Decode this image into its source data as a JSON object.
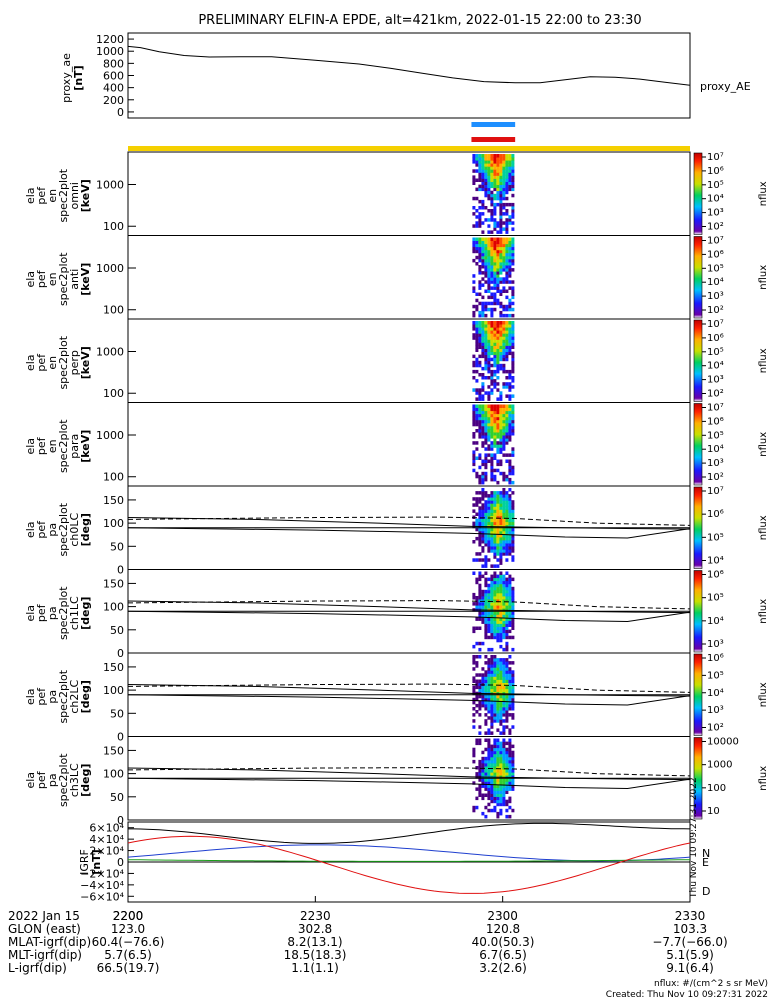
{
  "title": "PRELIMINARY ELFIN-A EPDE, alt=421km, 2022-01-15 22:00 to 23:30",
  "ae_panel": {
    "ylabel_1": "proxy_ae",
    "ylabel_2": "[nT]",
    "legend": "proxy_AE",
    "ticks": [
      "1200",
      "1000",
      "800",
      "600",
      "400",
      "200",
      "0"
    ],
    "tick_values": [
      1200,
      1000,
      800,
      600,
      400,
      200,
      0
    ],
    "ylim": [
      -100,
      1300
    ],
    "trace": [
      {
        "t": 0,
        "v": 1080
      },
      {
        "t": 2,
        "v": 1060
      },
      {
        "t": 5,
        "v": 990
      },
      {
        "t": 9,
        "v": 930
      },
      {
        "t": 13,
        "v": 905
      },
      {
        "t": 18,
        "v": 910
      },
      {
        "t": 23,
        "v": 910
      },
      {
        "t": 30,
        "v": 850
      },
      {
        "t": 37,
        "v": 790
      },
      {
        "t": 42,
        "v": 720
      },
      {
        "t": 47,
        "v": 640
      },
      {
        "t": 52,
        "v": 560
      },
      {
        "t": 57,
        "v": 500
      },
      {
        "t": 62,
        "v": 480
      },
      {
        "t": 66,
        "v": 480
      },
      {
        "t": 70,
        "v": 530
      },
      {
        "t": 74,
        "v": 580
      },
      {
        "t": 78,
        "v": 570
      },
      {
        "t": 82,
        "v": 540
      },
      {
        "t": 86,
        "v": 490
      },
      {
        "t": 90,
        "v": 440
      }
    ]
  },
  "spec_panels": [
    {
      "l1": "ela",
      "l2": "pef",
      "l3": "en",
      "l4": "spec2plot",
      "l5": "omni",
      "l6": "[keV]",
      "cb_ticks": [
        "10⁷",
        "10⁶",
        "10⁵",
        "10⁴",
        "10³",
        "10²"
      ],
      "cb_label": "nflux"
    },
    {
      "l1": "ela",
      "l2": "pef",
      "l3": "en",
      "l4": "spec2plot",
      "l5": "anti",
      "l6": "[keV]",
      "cb_ticks": [
        "10⁷",
        "10⁶",
        "10⁵",
        "10⁴",
        "10³",
        "10²"
      ],
      "cb_label": "nflux"
    },
    {
      "l1": "ela",
      "l2": "pef",
      "l3": "en",
      "l4": "spec2plot",
      "l5": "perp",
      "l6": "[keV]",
      "cb_ticks": [
        "10⁷",
        "10⁶",
        "10⁵",
        "10⁴",
        "10³",
        "10²"
      ],
      "cb_label": "nflux"
    },
    {
      "l1": "ela",
      "l2": "pef",
      "l3": "en",
      "l4": "spec2plot",
      "l5": "para",
      "l6": "[keV]",
      "cb_ticks": [
        "10⁷",
        "10⁶",
        "10⁵",
        "10⁴",
        "10³",
        "10²"
      ],
      "cb_label": "nflux"
    }
  ],
  "spec_ticks": [
    "1000",
    "100"
  ],
  "spec_tick_values": [
    1000,
    100
  ],
  "spec_ylim": [
    60,
    6000
  ],
  "pa_panels": [
    {
      "l1": "ela",
      "l2": "pef",
      "l3": "pa",
      "l4": "spec2plot",
      "l5": "ch0LC",
      "l6": "[deg]",
      "cb_ticks": [
        "10⁷",
        "10⁶",
        "10⁵",
        "10⁴"
      ],
      "cb_label": "nflux"
    },
    {
      "l1": "ela",
      "l2": "pef",
      "l3": "pa",
      "l4": "spec2plot",
      "l5": "ch1LC",
      "l6": "[deg]",
      "cb_ticks": [
        "10⁶",
        "10⁵",
        "10⁴",
        "10³"
      ],
      "cb_label": "nflux"
    },
    {
      "l1": "ela",
      "l2": "pef",
      "l3": "pa",
      "l4": "spec2plot",
      "l5": "ch2LC",
      "l6": "[deg]",
      "cb_ticks": [
        "10⁶",
        "10⁵",
        "10⁴",
        "10³",
        "10²"
      ],
      "cb_label": "nflux"
    },
    {
      "l1": "ela",
      "l2": "pef",
      "l3": "pa",
      "l4": "spec2plot",
      "l5": "ch3LC",
      "l6": "[deg]",
      "cb_ticks": [
        "10000",
        "1000",
        "100",
        "10"
      ],
      "cb_label": "nflux"
    }
  ],
  "pa_ticks": [
    "150",
    "100",
    "50",
    "0"
  ],
  "pa_tick_values": [
    150,
    100,
    50,
    0
  ],
  "pa_ylim": [
    0,
    180
  ],
  "igrf_panel": {
    "ylabel_1": "IGRF",
    "ylabel_2": "[nT]",
    "ticks": [
      "6×10⁴",
      "4×10⁴",
      "2×10⁴",
      "0",
      "−2×10⁴",
      "−4×10⁴",
      "−6×10⁴"
    ],
    "tick_values": [
      60000,
      40000,
      20000,
      0,
      -20000,
      -40000,
      -60000
    ],
    "ylim": [
      -70000,
      70000
    ],
    "legend": [
      "N",
      "E",
      "D"
    ],
    "colors": {
      "N": "#1f3fcf",
      "E": "#1a9e1a",
      "D": "#e01010",
      "F": "#000000"
    },
    "side_text": "Thu Nov 10 09:27:31 2022"
  },
  "x_axis": {
    "ticks": [
      "2200",
      "2230",
      "2300",
      "2330"
    ],
    "tick_minutes": [
      0,
      30,
      60,
      90
    ],
    "xlim": [
      0,
      90
    ]
  },
  "ephem": {
    "rows": [
      {
        "label": "2022 Jan 15",
        "vals": [
          "2200",
          "",
          "",
          ""
        ]
      },
      {
        "label": "GLON (east)",
        "vals": [
          "123.0",
          "302.8",
          "120.8",
          "103.3"
        ]
      },
      {
        "label": "MLAT-igrf(dip)",
        "vals": [
          "60.4(−76.6)",
          "8.2(13.1)",
          "40.0(50.3)",
          "−7.7(−66.0)"
        ]
      },
      {
        "label": "MLT-igrf(dip)",
        "vals": [
          "5.7(6.5)",
          "18.5(18.3)",
          "6.7(6.5)",
          "5.1(5.9)"
        ]
      },
      {
        "label": "L-igrf(dip)",
        "vals": [
          "66.5(19.7)",
          "1.1(1.1)",
          "3.2(2.6)",
          "9.1(6.4)"
        ]
      }
    ]
  },
  "footer": {
    "units": "nflux: #/(cm^2 s sr MeV)",
    "created": "Created: Thu Nov 10 09:27:31 2022"
  },
  "colors": {
    "bar_yellow": "#f5d000",
    "bar_blue": "#1e8fff",
    "bar_red": "#e01010"
  },
  "chart_data": {
    "type": "heatmap",
    "title": "PRELIMINARY ELFIN-A EPDE, alt=421km, 2022-01-15 22:00 to 23:30",
    "xlabel": "",
    "x_ticks": [
      "2200",
      "2230",
      "2300",
      "2330"
    ],
    "science_zone_minutes": [
      55,
      62
    ],
    "legend_placement": "right"
  }
}
